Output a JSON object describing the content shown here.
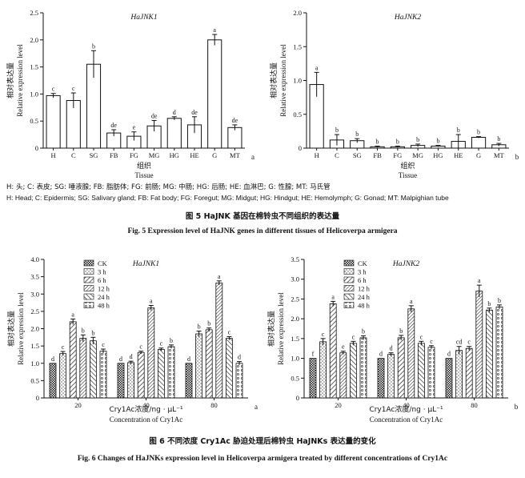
{
  "chart_data": [
    {
      "type": "bar",
      "title": "HaJNK1",
      "ylabel_cn": "相对表达量",
      "ylabel": "Relative expression level",
      "xlabel_cn": "组织",
      "xlabel": "Tissue",
      "panel_label": "a",
      "ylim": [
        0,
        2.5
      ],
      "yticks": [
        "0",
        "0.5",
        "1.0",
        "1.5",
        "2.0",
        "2.5"
      ],
      "categories": [
        "H",
        "C",
        "SG",
        "FB",
        "FG",
        "MG",
        "HG",
        "HE",
        "G",
        "MT"
      ],
      "values": [
        0.97,
        0.88,
        1.55,
        0.28,
        0.22,
        0.41,
        0.55,
        0.43,
        2.0,
        0.38
      ],
      "errors": [
        0.04,
        0.14,
        0.25,
        0.06,
        0.08,
        0.1,
        0.03,
        0.15,
        0.1,
        0.05
      ],
      "letters": [
        "c",
        "c",
        "b",
        "de",
        "e",
        "de",
        "d",
        "de",
        "a",
        "de"
      ]
    },
    {
      "type": "bar",
      "title": "HaJNK2",
      "ylabel_cn": "相对表达量",
      "ylabel": "Relative expression level",
      "xlabel_cn": "组织",
      "xlabel": "Tissue",
      "panel_label": "b",
      "ylim": [
        0,
        2.0
      ],
      "yticks": [
        "0",
        "0.5",
        "1.0",
        "1.5",
        "2.0"
      ],
      "categories": [
        "H",
        "C",
        "SG",
        "FB",
        "FG",
        "MG",
        "HG",
        "HE",
        "G",
        "MT"
      ],
      "values": [
        0.94,
        0.12,
        0.11,
        0.02,
        0.02,
        0.04,
        0.03,
        0.1,
        0.16,
        0.05
      ],
      "errors": [
        0.18,
        0.08,
        0.03,
        0.01,
        0.01,
        0.02,
        0.01,
        0.1,
        0.01,
        0.02
      ],
      "letters": [
        "a",
        "b",
        "b",
        "b",
        "b",
        "b",
        "b",
        "b",
        "b",
        "b"
      ]
    },
    {
      "type": "bar",
      "title": "HaJNK1",
      "ylabel_cn": "相对表达量",
      "ylabel": "Relative expression level",
      "xlabel_cn": "Cry1Ac浓度/ng · μL⁻¹",
      "xlabel": "Concentration of Cry1Ac",
      "panel_label": "a",
      "ylim": [
        0,
        4.0
      ],
      "yticks": [
        "0",
        "0.5",
        "1.0",
        "1.5",
        "2.0",
        "2.5",
        "3.0",
        "3.5",
        "4.0"
      ],
      "categories": [
        "20",
        "40",
        "80"
      ],
      "series": [
        {
          "name": "CK",
          "values": [
            1.0,
            1.0,
            1.0
          ],
          "errors": [
            0,
            0,
            0
          ],
          "letters": [
            "d",
            "d",
            "d"
          ]
        },
        {
          "name": "3 h",
          "values": [
            1.28,
            1.02,
            1.85
          ],
          "errors": [
            0.06,
            0.04,
            0.08
          ],
          "letters": [
            "c",
            "d",
            "b"
          ]
        },
        {
          "name": "6 h",
          "values": [
            2.2,
            1.31,
            1.97
          ],
          "errors": [
            0.08,
            0.04,
            0.05
          ],
          "letters": [
            "a",
            "c",
            "b"
          ]
        },
        {
          "name": "12 h",
          "values": [
            1.72,
            2.6,
            3.32
          ],
          "errors": [
            0.1,
            0.07,
            0.06
          ],
          "letters": [
            "b",
            "a",
            "a"
          ]
        },
        {
          "name": "24 h",
          "values": [
            1.65,
            1.4,
            1.72
          ],
          "errors": [
            0.1,
            0.04,
            0.05
          ],
          "letters": [
            "b",
            "c",
            "c"
          ]
        },
        {
          "name": "48 h",
          "values": [
            1.35,
            1.48,
            1.0
          ],
          "errors": [
            0.06,
            0.05,
            0.05
          ],
          "letters": [
            "c",
            "b",
            "d"
          ]
        }
      ]
    },
    {
      "type": "bar",
      "title": "HaJNK2",
      "ylabel_cn": "相对表达量",
      "ylabel": "Relative expression level",
      "xlabel_cn": "Cry1Ac浓度/ng · μL⁻¹",
      "xlabel": "Concentration of Cry1Ac",
      "panel_label": "b",
      "ylim": [
        0,
        3.5
      ],
      "yticks": [
        "0",
        "0.5",
        "1.0",
        "1.5",
        "2.0",
        "2.5",
        "3.0",
        "3.5"
      ],
      "categories": [
        "20",
        "40",
        "80"
      ],
      "series": [
        {
          "name": "CK",
          "values": [
            1.0,
            1.0,
            1.0
          ],
          "errors": [
            0,
            0,
            0
          ],
          "letters": [
            "f",
            "d",
            "d"
          ]
        },
        {
          "name": "3 h",
          "values": [
            1.42,
            1.1,
            1.2
          ],
          "errors": [
            0.08,
            0.04,
            0.1
          ],
          "letters": [
            "c",
            "d",
            "cd"
          ]
        },
        {
          "name": "6 h",
          "values": [
            2.38,
            1.52,
            1.25
          ],
          "errors": [
            0.06,
            0.06,
            0.05
          ],
          "letters": [
            "a",
            "b",
            "c"
          ]
        },
        {
          "name": "12 h",
          "values": [
            1.14,
            2.25,
            2.7
          ],
          "errors": [
            0.04,
            0.08,
            0.15
          ],
          "letters": [
            "e",
            "a",
            "a"
          ]
        },
        {
          "name": "24 h",
          "values": [
            1.38,
            1.38,
            2.22
          ],
          "errors": [
            0.05,
            0.05,
            0.05
          ],
          "letters": [
            "c",
            "c",
            "b"
          ]
        },
        {
          "name": "48 h",
          "values": [
            1.52,
            1.28,
            2.3
          ],
          "errors": [
            0.05,
            0.04,
            0.05
          ],
          "letters": [
            "b",
            "c",
            "b"
          ]
        }
      ]
    }
  ],
  "fig5": {
    "abbr_cn": "H: 头; C: 表皮; SG: 唾液腺; FB: 脂肪体; FG: 前肠; MG: 中肠; HG: 后肠; HE: 血淋巴; G: 性腺; MT: 马氏管",
    "abbr_en": "H: Head; C: Epidermis; SG: Salivary gland; FB: Fat body; FG: Foregut; MG: Midgut; HG: Hindgut; HE: Hemolymph; G: Gonad; MT: Malpighian tube",
    "caption_cn": "图 5   HaJNK 基因在棉铃虫不同组织的表达量",
    "caption_en": "Fig. 5    Expression level of HaJNK genes in different tissues of Helicoverpa armigera"
  },
  "fig6": {
    "caption_cn": "图 6   不同浓度 Cry1Ac 胁迫处理后棉铃虫 HaJNKs 表达量的变化",
    "caption_en": "Fig. 6   Changes of HaJNKs expression level in Helicoverpa armigera treated by different concentrations of Cry1Ac"
  },
  "colors": {
    "ink": "#111111",
    "bar_fill": "#ffffff"
  }
}
